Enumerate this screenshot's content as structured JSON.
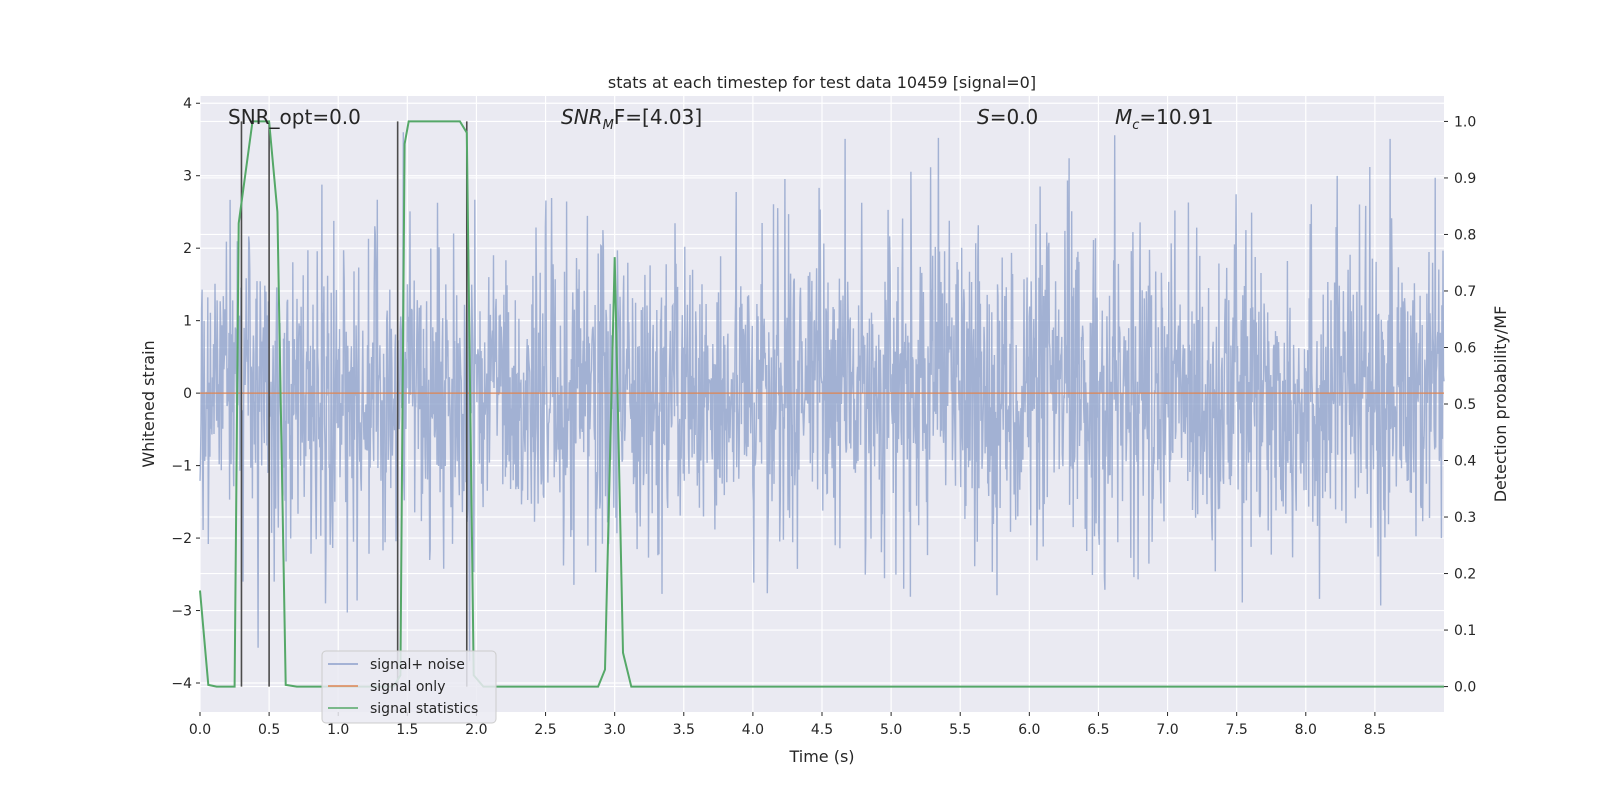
{
  "chart_data": {
    "type": "line",
    "title": "stats at each timestep for test data 10459 [signal=0]",
    "xlabel": "Time (s)",
    "ylabel": "Whitened strain",
    "ylabel_right": "Detection probability/MF",
    "xlim": [
      0.0,
      9.0
    ],
    "ylim": [
      -4.4,
      4.1
    ],
    "ylim_right": [
      -0.045,
      1.045
    ],
    "x_ticks": [
      "0.0",
      "0.5",
      "1.0",
      "1.5",
      "2.0",
      "2.5",
      "3.0",
      "3.5",
      "4.0",
      "4.5",
      "5.0",
      "5.5",
      "6.0",
      "6.5",
      "7.0",
      "7.5",
      "8.0",
      "8.5"
    ],
    "y_ticks_left": [
      "4",
      "3",
      "2",
      "1",
      "0",
      "−1",
      "−2",
      "−3",
      "−4"
    ],
    "y_ticks_right": [
      "1.0",
      "0.9",
      "0.8",
      "0.7",
      "0.6",
      "0.5",
      "0.4",
      "0.3",
      "0.2",
      "0.1",
      "0.0"
    ],
    "grid": true,
    "legend_placement": "lower-left",
    "annotations": {
      "snr_opt": "SNR_opt=0.0",
      "snr_mf_main": "SNR",
      "snr_mf_sub": "M",
      "snr_mf_rest": "F=[4.03]",
      "s_main": "S",
      "s_rest": "=0.0",
      "mc_main": "M",
      "mc_sub": "c",
      "mc_rest": "=10.91"
    },
    "series": [
      {
        "name": "signal+ noise",
        "color": "#8da0cb",
        "description_values": "whitened strain noise, approx. amplitude ±2 with spikes to ±3.6",
        "approx_envelope": [
          -3.7,
          3.6
        ]
      },
      {
        "name": "signal only",
        "color": "#dd8452",
        "values_constant": 0.0
      },
      {
        "name": "signal statistics",
        "color": "#55a868",
        "x": [
          0.0,
          0.06,
          0.12,
          0.25,
          0.28,
          0.38,
          0.5,
          0.56,
          0.62,
          0.7,
          1.4,
          1.45,
          1.48,
          1.51,
          1.88,
          1.93,
          1.98,
          2.05,
          2.8,
          2.88,
          2.93,
          3.0,
          3.06,
          3.12,
          3.2,
          9.0
        ],
        "y": [
          0.17,
          0.003,
          0.0,
          0.0,
          0.82,
          1.0,
          1.0,
          0.84,
          0.003,
          0.0,
          0.0,
          0.02,
          0.96,
          1.0,
          1.0,
          0.98,
          0.02,
          0.0,
          0.0,
          0.0,
          0.03,
          0.76,
          0.06,
          0.0,
          0.0,
          0.0
        ]
      }
    ],
    "vertical_markers_x": [
      0.3,
      0.5,
      1.43,
      1.93
    ],
    "vertical_markers_color": "#4c4c4c"
  },
  "legend": {
    "items": [
      {
        "label": "signal+ noise",
        "color": "#8da0cb"
      },
      {
        "label": "signal only",
        "color": "#dd8452"
      },
      {
        "label": "signal statistics",
        "color": "#55a868"
      }
    ]
  },
  "colors": {
    "plot_bg": "#eaeaf2",
    "grid": "#ffffff",
    "noise": "#8da0cb",
    "signal_only": "#dd8452",
    "statistics": "#55a868"
  }
}
